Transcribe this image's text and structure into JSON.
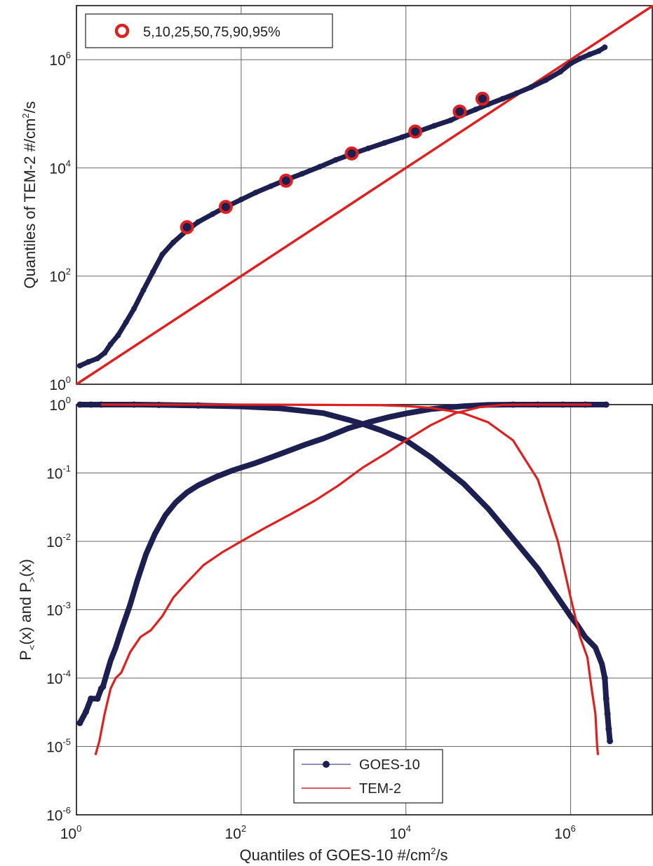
{
  "chart_data": [
    {
      "type": "scatter",
      "xlabel": "",
      "ylabel_parts": [
        "Quantiles of TEM-2 #/cm",
        "2",
        "/s"
      ],
      "xscale": "log",
      "yscale": "log",
      "xlim": [
        1,
        10000000
      ],
      "ylim": [
        1,
        10000000
      ],
      "grid": true,
      "legend_position": "top-left",
      "x_ticks": [
        1,
        100,
        10000,
        1000000
      ],
      "x_tick_labels": [],
      "y_ticks": [
        1,
        100,
        10000,
        1000000
      ],
      "y_tick_labels": [
        {
          "base": "10",
          "exp": "0"
        },
        {
          "base": "10",
          "exp": "2"
        },
        {
          "base": "10",
          "exp": "4"
        },
        {
          "base": "10",
          "exp": "6"
        }
      ],
      "series": [
        {
          "kind": "qq-dots",
          "color": "#1c1f4f",
          "x": [
            1.1,
            1.4,
            1.8,
            2.2,
            2.6,
            3.2,
            4.0,
            5.0,
            6.5,
            8.5,
            11,
            15,
            22,
            30,
            45,
            65,
            100,
            150,
            230,
            350,
            550,
            900,
            1400,
            2200,
            3500,
            5500,
            9000,
            14000,
            22000,
            35000,
            48000,
            70000,
            100000,
            150000,
            220000,
            330000,
            500000,
            750000,
            1000000,
            1300000,
            1700000,
            2200000,
            2600000
          ],
          "y": [
            2.2,
            2.6,
            3.0,
            3.8,
            5.5,
            8,
            14,
            25,
            55,
            120,
            250,
            420,
            700,
            1000,
            1400,
            1900,
            2600,
            3500,
            4600,
            6000,
            7800,
            10500,
            14000,
            18000,
            23000,
            29000,
            37000,
            47000,
            60000,
            76000,
            95000,
            120000,
            150000,
            190000,
            240000,
            310000,
            420000,
            600000,
            850000,
            1050000,
            1250000,
            1450000,
            1700000
          ]
        },
        {
          "kind": "percentile-markers",
          "name": "5,10,25,50,75,90,95%",
          "color": "#dd2020",
          "x": [
            22,
            65,
            350,
            2200,
            13000,
            45000,
            85000
          ],
          "y": [
            800,
            1900,
            5800,
            18500,
            47000,
            110000,
            190000
          ]
        },
        {
          "kind": "reference-line",
          "color": "#dd2020",
          "x": [
            1,
            10000000
          ],
          "y": [
            1,
            10000000
          ]
        }
      ]
    },
    {
      "type": "line",
      "xlabel_parts": [
        "Quantiles of GOES-10 #/cm",
        "2",
        "/s"
      ],
      "ylabel_parts": [
        "P",
        "<",
        "(x) and P",
        ">",
        "(x)"
      ],
      "xscale": "log",
      "yscale": "log",
      "xlim": [
        1,
        10000000
      ],
      "ylim": [
        1e-06,
        1
      ],
      "grid": true,
      "legend_position": "bottom-center",
      "x_ticks": [
        1,
        100,
        10000,
        1000000
      ],
      "x_tick_labels": [
        {
          "base": "10",
          "exp": "0"
        },
        {
          "base": "10",
          "exp": "2"
        },
        {
          "base": "10",
          "exp": "4"
        },
        {
          "base": "10",
          "exp": "6"
        }
      ],
      "y_ticks": [
        1e-06,
        1e-05,
        0.0001,
        0.001,
        0.01,
        0.1,
        1
      ],
      "y_tick_labels": [
        {
          "base": "10",
          "exp": "-6"
        },
        {
          "base": "10",
          "exp": "-5"
        },
        {
          "base": "10",
          "exp": "-4"
        },
        {
          "base": "10",
          "exp": "-3"
        },
        {
          "base": "10",
          "exp": "-2"
        },
        {
          "base": "10",
          "exp": "-1"
        },
        {
          "base": "10",
          "exp": "0"
        }
      ],
      "series": [
        {
          "name": "GOES-10",
          "color": "#1c1f4f",
          "marker": "dot",
          "curves": [
            {
              "x": [
                1.1,
                1.3,
                1.5,
                1.8,
                2.0,
                2.1,
                2.3,
                2.6,
                3.0,
                3.5,
                4.5,
                5.5,
                7,
                9,
                12,
                16,
                22,
                30,
                50,
                80,
                150,
                300,
                600,
                1000,
                2000,
                3500,
                6000,
                10000,
                20000,
                50000,
                100000,
                200000,
                400000,
                800000,
                1500000,
                2700000
              ],
              "y": [
                2.2e-05,
                3.2e-05,
                5e-05,
                5e-05,
                7e-05,
                7.5e-05,
                0.00011,
                0.00018,
                0.00028,
                0.0005,
                0.0012,
                0.0027,
                0.0065,
                0.013,
                0.024,
                0.037,
                0.052,
                0.066,
                0.088,
                0.11,
                0.14,
                0.19,
                0.26,
                0.32,
                0.45,
                0.55,
                0.65,
                0.74,
                0.86,
                0.95,
                0.99,
                1.0,
                1.0,
                1.0,
                1.0,
                1.0
              ]
            },
            {
              "x": [
                1.1,
                1.5,
                2.0,
                5,
                10,
                30,
                100,
                300,
                1000,
                2000,
                3000,
                5000,
                10000,
                20000,
                50000,
                100000,
                200000,
                400000,
                700000,
                1000000,
                1200000,
                1500000,
                2000000,
                2400000,
                2600000,
                2700000,
                2800000,
                2900000,
                3000000
              ],
              "y": [
                1.0,
                1.0,
                1.0,
                1.0,
                0.99,
                0.97,
                0.94,
                0.88,
                0.75,
                0.6,
                0.52,
                0.42,
                0.3,
                0.17,
                0.07,
                0.03,
                0.011,
                0.004,
                0.0015,
                0.0008,
                0.0006,
                0.0004,
                0.00028,
                0.00016,
                0.0001,
                5e-05,
                3e-05,
                1.8e-05,
                1.2e-05
              ]
            }
          ]
        },
        {
          "name": "TEM-2",
          "color": "#dd2020",
          "marker": "none",
          "curves": [
            {
              "x": [
                1.7,
                1.9,
                2.2,
                2.6,
                3.0,
                3.5,
                4.5,
                6,
                8,
                11,
                15,
                22,
                35,
                60,
                100,
                200,
                400,
                800,
                1500,
                3000,
                6000,
                10000,
                20000,
                40000,
                80000,
                150000,
                300000,
                600000,
                1000000,
                1800000
              ],
              "y": [
                7.5e-06,
                1.2e-05,
                3e-05,
                7e-05,
                0.0001,
                0.00012,
                0.00024,
                0.0004,
                0.0005,
                0.0008,
                0.0015,
                0.0025,
                0.0045,
                0.007,
                0.01,
                0.016,
                0.025,
                0.04,
                0.065,
                0.12,
                0.2,
                0.3,
                0.5,
                0.75,
                0.92,
                0.99,
                1.0,
                1.0,
                1.0,
                1.0
              ]
            },
            {
              "x": [
                2,
                10,
                100,
                1000,
                5000,
                10000,
                20000,
                50000,
                100000,
                200000,
                400000,
                700000,
                1000000,
                1300000,
                1600000,
                1800000,
                2000000,
                2100000,
                2150000
              ],
              "y": [
                1.0,
                1.0,
                1.0,
                0.99,
                0.98,
                0.95,
                0.9,
                0.75,
                0.55,
                0.3,
                0.08,
                0.01,
                0.0015,
                0.0004,
                0.0002,
                7e-05,
                3e-05,
                1e-05,
                7.5e-06
              ]
            }
          ]
        }
      ]
    }
  ]
}
